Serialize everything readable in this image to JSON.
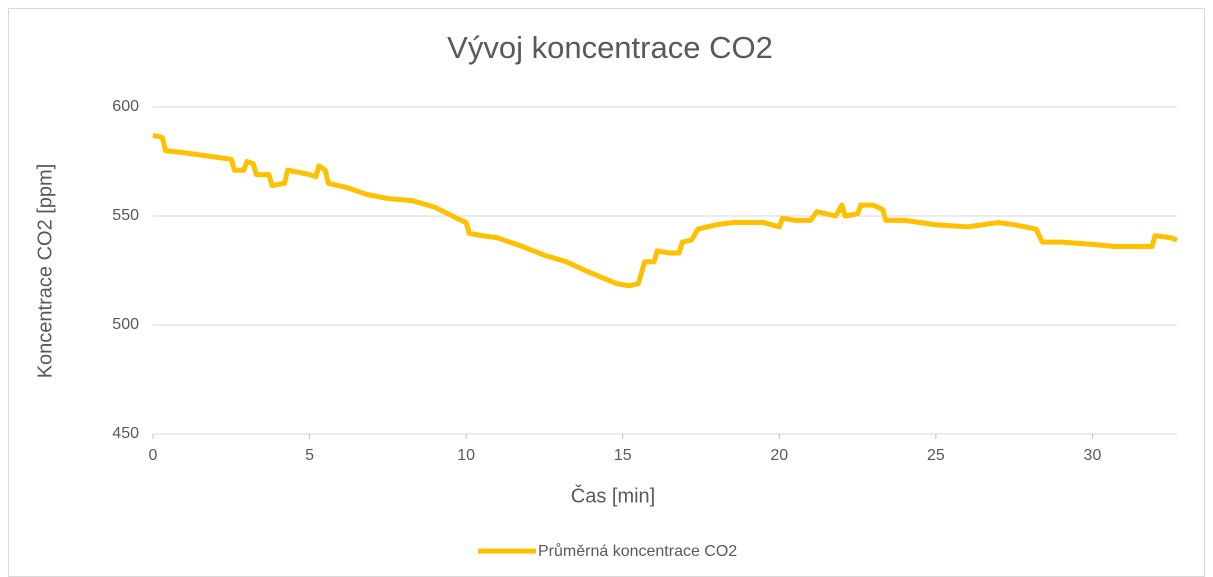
{
  "chart_data": {
    "type": "line",
    "title": "Vývoj koncentrace CO2",
    "xlabel": "Čas [min]",
    "ylabel": "Koncentrace CO2 [ppm]",
    "xlim": [
      0,
      32.7
    ],
    "xticks": [
      0,
      5,
      10,
      15,
      20,
      25,
      30
    ],
    "ylim": [
      450,
      600
    ],
    "yticks": [
      450,
      500,
      550,
      600
    ],
    "grid": true,
    "legend": "bottom",
    "x": [
      0,
      0.3,
      0.4,
      1,
      1.5,
      2,
      2.5,
      2.6,
      2.9,
      3.0,
      3.2,
      3.3,
      3.7,
      3.8,
      4.2,
      4.3,
      5.0,
      5.2,
      5.3,
      5.5,
      5.6,
      6.2,
      6.8,
      7.5,
      8.3,
      9.0,
      9.7,
      10.0,
      10.1,
      10.5,
      11,
      11.8,
      12.5,
      13.2,
      13.8,
      14.3,
      14.8,
      15.2,
      15.5,
      15.7,
      16,
      16.1,
      16.5,
      16.8,
      16.9,
      17.2,
      17.4,
      18,
      18.5,
      19.5,
      20,
      20.1,
      20.5,
      21,
      21.2,
      21.8,
      22,
      22.1,
      22.5,
      22.6,
      23,
      23.3,
      23.4,
      24,
      25,
      26,
      27,
      27.5,
      28.2,
      28.4,
      29,
      30,
      30.7,
      31.5,
      31.9,
      32.0,
      32.5,
      32.7
    ],
    "series": [
      {
        "name": "Průměrná koncentrace CO2",
        "color": "#ffc000",
        "values": [
          587,
          586,
          580,
          579,
          578,
          577,
          576,
          571,
          571,
          575,
          574,
          569,
          569,
          564,
          565,
          571,
          569,
          568,
          573,
          571,
          565,
          563,
          560,
          558,
          557,
          554,
          549,
          547,
          542,
          541,
          540,
          536,
          532,
          529,
          525,
          522,
          519,
          518,
          519,
          529,
          529,
          534,
          533,
          533,
          538,
          539,
          544,
          546,
          547,
          547,
          545,
          549,
          548,
          548,
          552,
          550,
          555,
          550,
          551,
          555,
          555,
          553,
          548,
          548,
          546,
          545,
          547,
          546,
          544,
          538,
          538,
          537,
          536,
          536,
          536,
          541,
          540,
          539
        ]
      }
    ]
  }
}
